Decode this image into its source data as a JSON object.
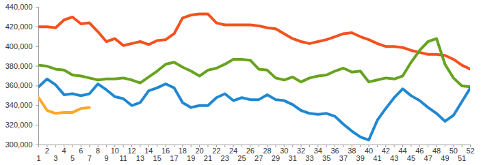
{
  "chart_data": {
    "type": "line",
    "x": [
      1,
      2,
      3,
      4,
      5,
      6,
      7,
      8,
      9,
      10,
      11,
      12,
      13,
      14,
      15,
      16,
      17,
      18,
      19,
      20,
      21,
      22,
      23,
      24,
      25,
      26,
      27,
      28,
      29,
      30,
      31,
      32,
      33,
      34,
      35,
      36,
      37,
      38,
      39,
      40,
      41,
      42,
      43,
      44,
      45,
      46,
      47,
      48,
      49,
      50,
      51,
      52
    ],
    "xlim": [
      1,
      52
    ],
    "xticks": [
      1,
      2,
      3,
      4,
      5,
      6,
      7,
      8,
      9,
      10,
      11,
      12,
      13,
      14,
      15,
      16,
      17,
      18,
      19,
      20,
      21,
      22,
      23,
      24,
      25,
      26,
      27,
      28,
      29,
      30,
      31,
      32,
      33,
      34,
      35,
      36,
      37,
      38,
      39,
      40,
      41,
      42,
      43,
      44,
      45,
      46,
      47,
      48,
      49,
      50,
      51,
      52
    ],
    "ylim": [
      300000,
      440000
    ],
    "yticks": [
      {
        "value": 300000,
        "label": "300,000"
      },
      {
        "value": 320000,
        "label": "320,000"
      },
      {
        "value": 340000,
        "label": "340,000"
      },
      {
        "value": 360000,
        "label": "360,000"
      },
      {
        "value": 380000,
        "label": "380,000"
      },
      {
        "value": 400000,
        "label": "400,000"
      },
      {
        "value": 420000,
        "label": "420,000"
      },
      {
        "value": 440000,
        "label": "440,000"
      }
    ],
    "grid": false,
    "series": [
      {
        "color": "#f4511e",
        "values": [
          420000,
          420000,
          419000,
          427000,
          430000,
          423000,
          424000,
          415000,
          405000,
          408000,
          401000,
          403000,
          405000,
          402000,
          406000,
          407000,
          413000,
          429000,
          432000,
          433000,
          433000,
          424000,
          422000,
          422000,
          422000,
          422000,
          421000,
          419000,
          418000,
          413000,
          408000,
          405000,
          403000,
          405000,
          407000,
          410000,
          413000,
          414000,
          410000,
          407000,
          403000,
          400000,
          400000,
          399000,
          396000,
          394000,
          392000,
          392000,
          391000,
          387000,
          381000,
          377000
        ]
      },
      {
        "color": "#66a31f",
        "values": [
          381000,
          380000,
          377000,
          376000,
          371000,
          370000,
          368000,
          366000,
          367000,
          367000,
          368000,
          366000,
          363000,
          369000,
          375000,
          382000,
          384000,
          379000,
          375000,
          370000,
          376000,
          378000,
          382000,
          387000,
          387000,
          386000,
          377000,
          376000,
          368000,
          366000,
          369000,
          364000,
          368000,
          370000,
          371000,
          375000,
          378000,
          374000,
          375000,
          364000,
          366000,
          368000,
          367000,
          370000,
          384000,
          396000,
          405000,
          408000,
          382000,
          368000,
          360000,
          359000
        ]
      },
      {
        "color": "#1f88d2",
        "values": [
          359000,
          367000,
          361000,
          351000,
          352000,
          350000,
          352000,
          362000,
          356000,
          349000,
          347000,
          340000,
          343000,
          355000,
          358000,
          362000,
          358000,
          343000,
          338000,
          340000,
          340000,
          348000,
          352000,
          345000,
          348000,
          346000,
          346000,
          351000,
          346000,
          345000,
          341000,
          335000,
          332000,
          331000,
          332000,
          329000,
          321000,
          314000,
          308000,
          305000,
          325000,
          337000,
          348000,
          357000,
          350000,
          345000,
          338000,
          332000,
          324000,
          330000,
          344000,
          358000
        ]
      },
      {
        "color": "#ffa726",
        "values": [
          348000,
          335000,
          332000,
          333000,
          333000,
          337000,
          338000,
          null,
          null,
          null,
          null,
          null,
          null,
          null,
          null,
          null,
          null,
          null,
          null,
          null,
          null,
          null,
          null,
          null,
          null,
          null,
          null,
          null,
          null,
          null,
          null,
          null,
          null,
          null,
          null,
          null,
          null,
          null,
          null,
          null,
          null,
          null,
          null,
          null,
          null,
          null,
          null,
          null,
          null,
          null,
          null,
          null
        ]
      }
    ]
  }
}
